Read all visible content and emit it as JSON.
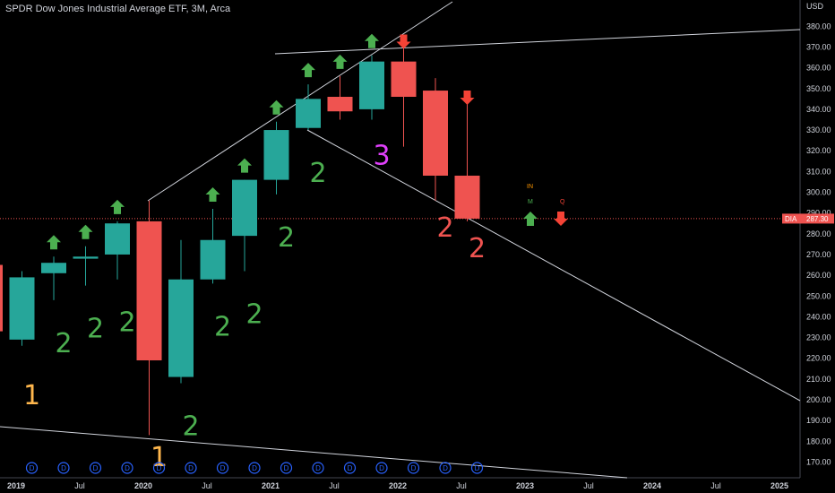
{
  "header": {
    "title": "SPDR Dow Jones Industrial Average ETF, 3M, Arca",
    "currency": "USD"
  },
  "price_tag": {
    "symbol": "DIA",
    "value": "287.30"
  },
  "legend": {
    "in": "IN",
    "m": "M",
    "q": "Q"
  },
  "colors": {
    "bull": "#26a69a",
    "bear": "#ef5350",
    "arrow_up": "#4caf50",
    "arrow_down": "#f44336",
    "count_green": "#4caf50",
    "count_red": "#ef5350",
    "count_orange": "#ffb74d",
    "count_magenta": "#e040fb",
    "dividend": "#2962ff"
  },
  "chart_data": {
    "type": "candlestick",
    "title": "SPDR Dow Jones Industrial Average ETF, 3M, Arca",
    "ylabel": "USD",
    "ylim": [
      165,
      385
    ],
    "y_ticks": [
      170,
      180,
      190,
      200,
      210,
      220,
      230,
      240,
      250,
      260,
      270,
      280,
      290,
      300,
      310,
      320,
      330,
      340,
      350,
      360,
      370,
      380
    ],
    "x_ticks": [
      {
        "label": "2019",
        "bold": true
      },
      {
        "label": "Jul",
        "bold": false
      },
      {
        "label": "2020",
        "bold": true
      },
      {
        "label": "Jul",
        "bold": false
      },
      {
        "label": "2021",
        "bold": true
      },
      {
        "label": "Jul",
        "bold": false
      },
      {
        "label": "2022",
        "bold": true
      },
      {
        "label": "Jul",
        "bold": false
      },
      {
        "label": "2023",
        "bold": true
      },
      {
        "label": "Jul",
        "bold": false
      },
      {
        "label": "2024",
        "bold": true
      },
      {
        "label": "Jul",
        "bold": false
      },
      {
        "label": "2025",
        "bold": true
      }
    ],
    "last_price": 287.3,
    "candles": [
      {
        "period": "2018 Q4",
        "open": 265,
        "high": 266,
        "low": 231,
        "close": 233
      },
      {
        "period": "2019 Q1",
        "open": 229,
        "high": 262,
        "low": 226,
        "close": 259
      },
      {
        "period": "2019 Q2",
        "open": 261,
        "high": 269,
        "low": 248,
        "close": 266
      },
      {
        "period": "2019 Q3",
        "open": 268,
        "high": 274,
        "low": 255,
        "close": 269
      },
      {
        "period": "2019 Q4",
        "open": 270,
        "high": 286,
        "low": 258,
        "close": 285
      },
      {
        "period": "2020 Q1",
        "open": 286,
        "high": 296,
        "low": 183,
        "close": 219
      },
      {
        "period": "2020 Q2",
        "open": 211,
        "high": 277,
        "low": 208,
        "close": 258
      },
      {
        "period": "2020 Q3",
        "open": 258,
        "high": 292,
        "low": 256,
        "close": 277
      },
      {
        "period": "2020 Q4",
        "open": 279,
        "high": 306,
        "low": 262,
        "close": 306
      },
      {
        "period": "2021 Q1",
        "open": 306,
        "high": 334,
        "low": 299,
        "close": 330
      },
      {
        "period": "2021 Q2",
        "open": 331,
        "high": 352,
        "low": 330,
        "close": 345
      },
      {
        "period": "2021 Q3",
        "open": 346,
        "high": 356,
        "low": 335,
        "close": 339
      },
      {
        "period": "2021 Q4",
        "open": 340,
        "high": 366,
        "low": 335,
        "close": 363
      },
      {
        "period": "2022 Q1",
        "open": 363,
        "high": 370,
        "low": 322,
        "close": 346
      },
      {
        "period": "2022 Q2",
        "open": 349,
        "high": 355,
        "low": 296,
        "close": 308
      },
      {
        "period": "2022 Q3",
        "open": 308,
        "high": 343,
        "low": 286,
        "close": 287.3
      }
    ],
    "counts": [
      {
        "label": "1",
        "color": "orange"
      },
      {
        "label": "2",
        "color": "green"
      },
      {
        "label": "2",
        "color": "green"
      },
      {
        "label": "2",
        "color": "green"
      },
      {
        "label": "1",
        "color": "orange"
      },
      {
        "label": "2",
        "color": "green"
      },
      {
        "label": "2",
        "color": "green"
      },
      {
        "label": "2",
        "color": "green"
      },
      {
        "label": "2",
        "color": "green"
      },
      {
        "label": "2",
        "color": "green"
      },
      {
        "label": "3",
        "color": "magenta"
      },
      {
        "label": "2",
        "color": "red"
      },
      {
        "label": "2",
        "color": "red"
      }
    ],
    "signals": [
      {
        "period": "2019 Q2",
        "direction": "up"
      },
      {
        "period": "2019 Q3",
        "direction": "up"
      },
      {
        "period": "2019 Q4",
        "direction": "up"
      },
      {
        "period": "2020 Q3",
        "direction": "up"
      },
      {
        "period": "2020 Q4",
        "direction": "up"
      },
      {
        "period": "2021 Q1",
        "direction": "up"
      },
      {
        "period": "2021 Q2",
        "direction": "up"
      },
      {
        "period": "2021 Q3",
        "direction": "up"
      },
      {
        "period": "2021 Q4",
        "direction": "up"
      },
      {
        "period": "2022 Q1",
        "direction": "down"
      },
      {
        "period": "2022 Q3",
        "direction": "down"
      }
    ],
    "dividend_marker": "D",
    "dividend_count": 15,
    "legend_markers": [
      {
        "label": "M",
        "direction": "up"
      },
      {
        "label": "Q",
        "direction": "down"
      }
    ],
    "grid": false
  }
}
